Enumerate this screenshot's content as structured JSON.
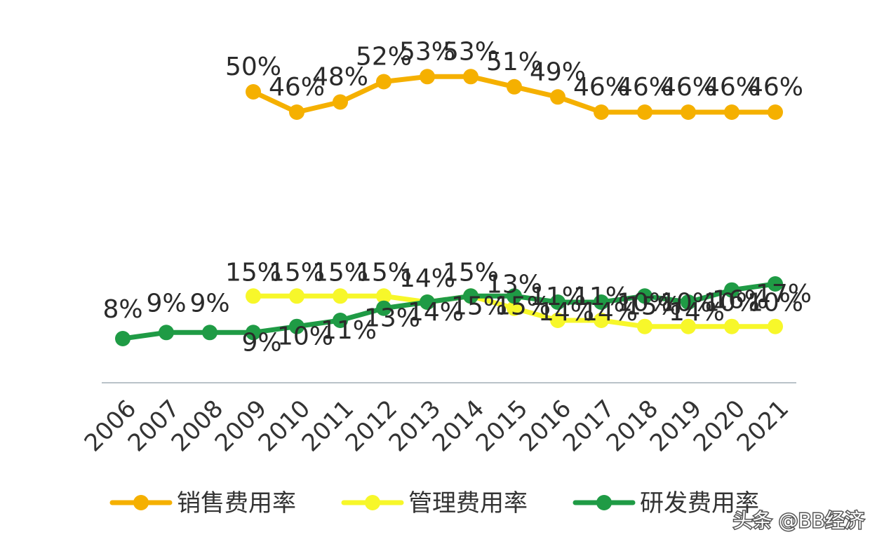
{
  "chart_data": {
    "type": "line",
    "x": [
      "2006",
      "2007",
      "2008",
      "2009",
      "2010",
      "2011",
      "2012",
      "2013",
      "2014",
      "2015",
      "2016",
      "2017",
      "2018",
      "2019",
      "2020",
      "2021"
    ],
    "ylim": [
      0,
      60
    ],
    "grid": false,
    "legend_position": "bottom",
    "series": [
      {
        "name": "销售费用率",
        "color": "#F5B000",
        "values": [
          null,
          null,
          null,
          50,
          46,
          48,
          52,
          53,
          53,
          51,
          49,
          46,
          46,
          46,
          46,
          46
        ],
        "labels": [
          null,
          null,
          null,
          "50%",
          "46%",
          "48%",
          "52%",
          "53%",
          "53%",
          "51%",
          "49%",
          "46%",
          "46%",
          "46%",
          "46%",
          "46%"
        ]
      },
      {
        "name": "管理费用率",
        "color": "#F7F72A",
        "values": [
          null,
          null,
          null,
          15,
          15,
          15,
          15,
          14,
          15,
          13,
          11,
          11,
          10,
          10,
          10,
          10
        ],
        "labels": [
          null,
          null,
          null,
          "15%",
          "15%",
          "15%",
          "15%",
          "14%",
          "15%",
          "13%",
          "11%",
          "11%",
          "10%",
          "10%",
          "10%",
          "10%"
        ]
      },
      {
        "name": "研发费用率",
        "color": "#1F9B45",
        "values": [
          8,
          9,
          9,
          9,
          10,
          11,
          13,
          14,
          15,
          15,
          14,
          14,
          15,
          14,
          16,
          17
        ],
        "labels": [
          "8%",
          "9%",
          "9%",
          "9%",
          "10%",
          "11%",
          "13%",
          "14%",
          "15%",
          "15%",
          "14%",
          "14%",
          "15%",
          "14%",
          "16%",
          "17%"
        ]
      }
    ]
  },
  "watermark": "头条 @BB经济"
}
